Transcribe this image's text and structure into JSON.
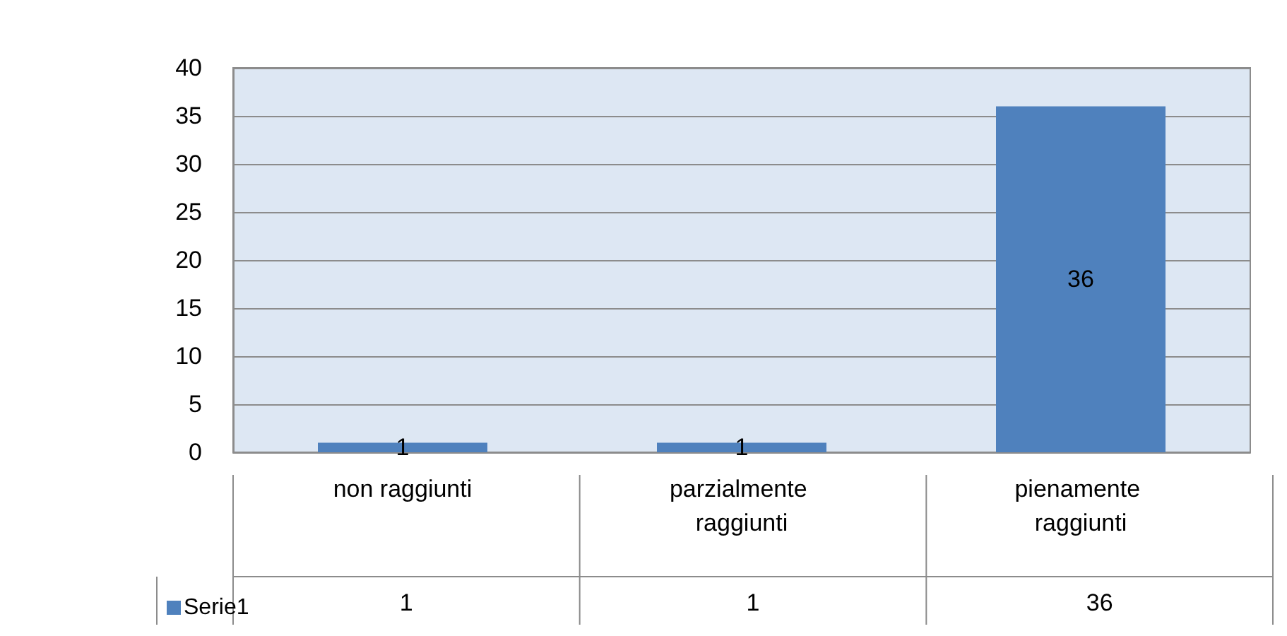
{
  "chart_data": {
    "type": "bar",
    "categories": [
      "non raggiunti",
      "parzialmente raggiunti",
      "pienamente raggiunti"
    ],
    "series": [
      {
        "name": "Serie1",
        "color": "#4f81bd",
        "values": [
          1,
          1,
          36
        ],
        "value_labels": [
          "1",
          "1",
          "36"
        ]
      }
    ],
    "ylim": [
      0,
      40
    ],
    "yticks": [
      0,
      5,
      10,
      15,
      20,
      25,
      30,
      35,
      40
    ],
    "grid": "y",
    "legend": "bottom left",
    "data_labels": true
  }
}
